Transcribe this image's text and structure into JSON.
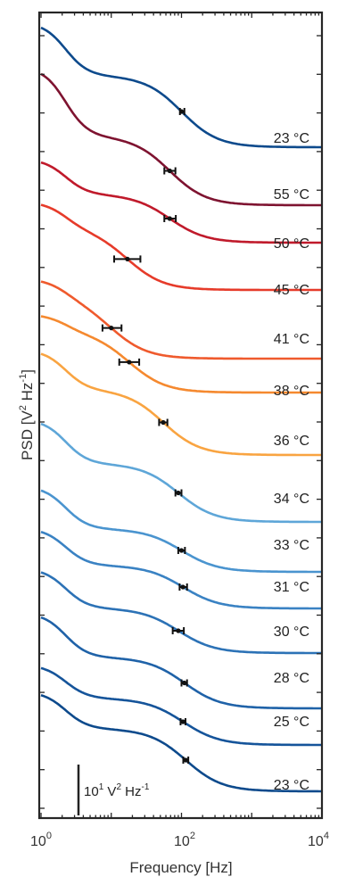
{
  "chart_data": {
    "type": "line",
    "xlabel": "Frequency [Hz]",
    "ylabel_parts": {
      "main": "PSD [V",
      "sq": "2",
      "mid": " Hz",
      "exp": "-1",
      "end": "]"
    },
    "x_scale": "log",
    "xlim": [
      1,
      10000
    ],
    "x_ticks": [
      {
        "base": "10",
        "exp": "0",
        "value": 1
      },
      {
        "base": "10",
        "exp": "2",
        "value": 100
      },
      {
        "base": "10",
        "exp": "4",
        "value": 10000
      }
    ],
    "scale_bar": {
      "base": "10",
      "exp": "1",
      "unit": " V",
      "unit_sq": "2",
      "unit_end": " Hz",
      "unit_exp": "-1"
    },
    "grid": false,
    "series": [
      {
        "label": "23 °C",
        "color": "#0d4a8c",
        "knee_hz": 100,
        "knee_err_low": 95,
        "knee_err_high": 110
      },
      {
        "label": "55 °C",
        "color": "#7e1330",
        "knee_hz": 68,
        "knee_err_low": 57,
        "knee_err_high": 82
      },
      {
        "label": "50 °C",
        "color": "#c01a2b",
        "knee_hz": 68,
        "knee_err_low": 57,
        "knee_err_high": 83
      },
      {
        "label": "45 °C",
        "color": "#e63b2a",
        "knee_hz": 17,
        "knee_err_low": 11,
        "knee_err_high": 26
      },
      {
        "label": "41 °C",
        "color": "#ef5a2d",
        "knee_hz": 10,
        "knee_err_low": 7.5,
        "knee_err_high": 14
      },
      {
        "label": "38 °C",
        "color": "#f5892f",
        "knee_hz": 18,
        "knee_err_low": 13,
        "knee_err_high": 25
      },
      {
        "label": "36 °C",
        "color": "#f9a441",
        "knee_hz": 55,
        "knee_err_low": 48,
        "knee_err_high": 63
      },
      {
        "label": "34 °C",
        "color": "#5ea6d8",
        "knee_hz": 90,
        "knee_err_low": 82,
        "knee_err_high": 100
      },
      {
        "label": "33 °C",
        "color": "#4a94cf",
        "knee_hz": 100,
        "knee_err_low": 90,
        "knee_err_high": 112
      },
      {
        "label": "31 °C",
        "color": "#3a82c3",
        "knee_hz": 105,
        "knee_err_low": 94,
        "knee_err_high": 120
      },
      {
        "label": "30 °C",
        "color": "#2c72b6",
        "knee_hz": 90,
        "knee_err_low": 75,
        "knee_err_high": 108
      },
      {
        "label": "28 °C",
        "color": "#1f62a8",
        "knee_hz": 110,
        "knee_err_low": 100,
        "knee_err_high": 120
      },
      {
        "label": "25 °C",
        "color": "#15549a",
        "knee_hz": 105,
        "knee_err_low": 97,
        "knee_err_high": 114
      },
      {
        "label": "23 °C",
        "color": "#0d4a8c",
        "knee_hz": 115,
        "knee_err_low": 106,
        "knee_err_high": 125
      }
    ]
  }
}
